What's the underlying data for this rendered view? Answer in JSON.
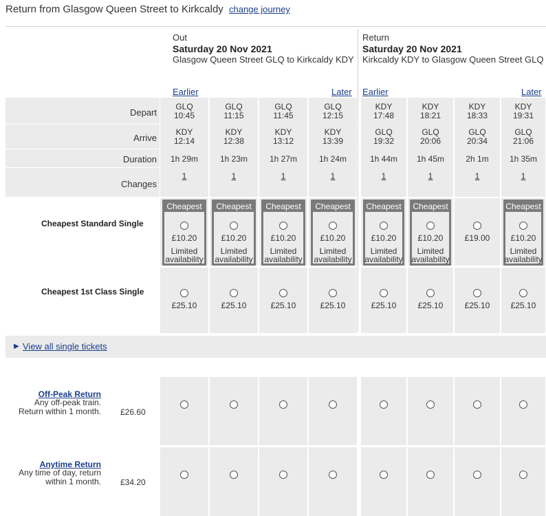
{
  "header": {
    "title": "Return from Glasgow Queen Street to Kirkcaldy",
    "change_link": "change journey"
  },
  "outbound": {
    "label": "Out",
    "date": "Saturday 20 Nov 2021",
    "route": "Glasgow Queen Street GLQ to Kirkcaldy KDY",
    "earlier": "Earlier",
    "later": "Later"
  },
  "inbound": {
    "label": "Return",
    "date": "Saturday 20 Nov 2021",
    "route": "Kirkcaldy KDY to Glasgow Queen Street GLQ",
    "earlier": "Earlier",
    "later": "Later"
  },
  "row_labels": {
    "depart": "Depart",
    "arrive": "Arrive",
    "duration": "Duration",
    "changes": "Changes"
  },
  "journeys": [
    {
      "dep_st": "GLQ",
      "dep": "10:45",
      "arr_st": "KDY",
      "arr": "12:14",
      "dur": "1h 29m",
      "chg": "1",
      "single": "£10.20",
      "cheapest": true,
      "limited": true,
      "first": "£25.10"
    },
    {
      "dep_st": "GLQ",
      "dep": "11:15",
      "arr_st": "KDY",
      "arr": "12:38",
      "dur": "1h 23m",
      "chg": "1",
      "single": "£10.20",
      "cheapest": true,
      "limited": true,
      "first": "£25.10"
    },
    {
      "dep_st": "GLQ",
      "dep": "11:45",
      "arr_st": "KDY",
      "arr": "13:12",
      "dur": "1h 27m",
      "chg": "1",
      "single": "£10.20",
      "cheapest": true,
      "limited": true,
      "first": "£25.10"
    },
    {
      "dep_st": "GLQ",
      "dep": "12:15",
      "arr_st": "KDY",
      "arr": "13:39",
      "dur": "1h 24m",
      "chg": "1",
      "single": "£10.20",
      "cheapest": true,
      "limited": true,
      "first": "£25.10"
    },
    {
      "dep_st": "KDY",
      "dep": "17:48",
      "arr_st": "GLQ",
      "arr": "19:32",
      "dur": "1h 44m",
      "chg": "1",
      "single": "£10.20",
      "cheapest": true,
      "limited": true,
      "first": "£25.10"
    },
    {
      "dep_st": "KDY",
      "dep": "18:21",
      "arr_st": "GLQ",
      "arr": "20:06",
      "dur": "1h 45m",
      "chg": "1",
      "single": "£10.20",
      "cheapest": true,
      "limited": true,
      "first": "£25.10"
    },
    {
      "dep_st": "KDY",
      "dep": "18:33",
      "arr_st": "GLQ",
      "arr": "20:34",
      "dur": "2h 1m",
      "chg": "1",
      "single": "£19.00",
      "cheapest": false,
      "limited": false,
      "first": "£25.10"
    },
    {
      "dep_st": "KDY",
      "dep": "19:31",
      "arr_st": "GLQ",
      "arr": "21:06",
      "dur": "1h 35m",
      "chg": "1",
      "single": "£10.20",
      "cheapest": true,
      "limited": true,
      "first": "£25.10"
    }
  ],
  "cheapest_tag": "Cheapest",
  "limited_line1": "Limited",
  "limited_line2": "availability",
  "singles": {
    "standard_label": "Cheapest Standard Single",
    "first_label": "Cheapest 1st Class Single",
    "view_all": "View all single tickets"
  },
  "returns": [
    {
      "name": "Off-Peak Return",
      "desc1": "Any off-peak train.",
      "desc2": "Return within 1 month.",
      "price": "£26.60"
    },
    {
      "name": "Anytime Return",
      "desc1": "Any time of day, return",
      "desc2": "within 1 month.",
      "price": "£34.20"
    }
  ]
}
